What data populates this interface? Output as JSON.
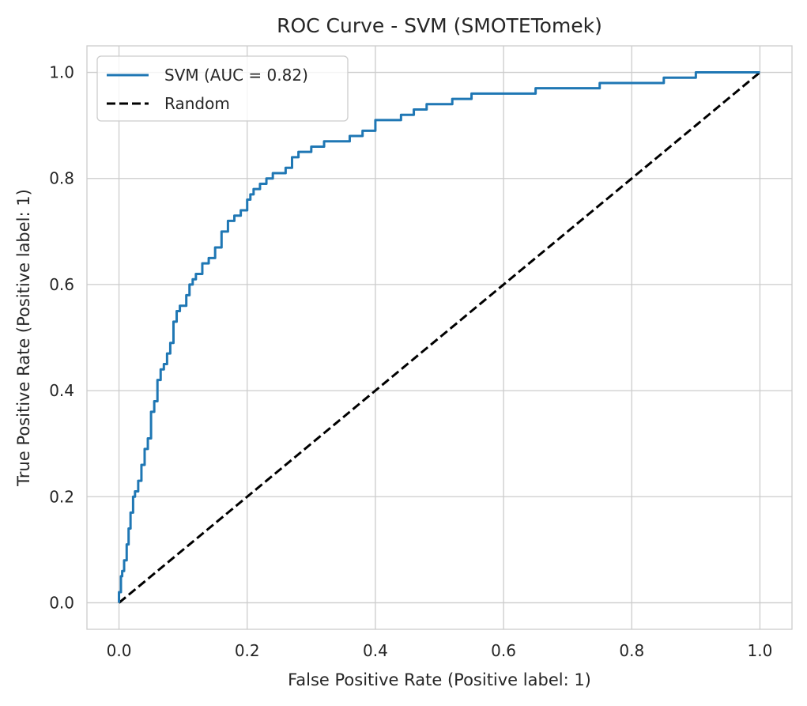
{
  "chart_data": {
    "type": "line",
    "title": "ROC Curve - SVM (SMOTETomek)",
    "xlabel": "False Positive Rate (Positive label: 1)",
    "ylabel": "True Positive Rate (Positive label: 1)",
    "xlim": [
      -0.05,
      1.05
    ],
    "ylim": [
      -0.05,
      1.05
    ],
    "xticks": [
      "0.0",
      "0.2",
      "0.4",
      "0.6",
      "0.8",
      "1.0"
    ],
    "yticks": [
      "0.0",
      "0.2",
      "0.4",
      "0.6",
      "0.8",
      "1.0"
    ],
    "grid": true,
    "legend_position": "top-left",
    "series": [
      {
        "name": "SVM (AUC = 0.82)",
        "color": "#1f77b4",
        "style": "solid",
        "x": [
          0.0,
          0.0,
          0.003,
          0.005,
          0.008,
          0.012,
          0.015,
          0.018,
          0.022,
          0.025,
          0.03,
          0.035,
          0.04,
          0.045,
          0.05,
          0.055,
          0.06,
          0.065,
          0.07,
          0.075,
          0.08,
          0.085,
          0.09,
          0.095,
          0.1,
          0.105,
          0.11,
          0.115,
          0.12,
          0.13,
          0.14,
          0.15,
          0.16,
          0.17,
          0.18,
          0.19,
          0.2,
          0.205,
          0.21,
          0.22,
          0.23,
          0.24,
          0.25,
          0.26,
          0.27,
          0.28,
          0.3,
          0.32,
          0.34,
          0.36,
          0.38,
          0.4,
          0.42,
          0.44,
          0.45,
          0.46,
          0.48,
          0.5,
          0.52,
          0.55,
          0.58,
          0.6,
          0.62,
          0.65,
          0.68,
          0.7,
          0.75,
          0.76,
          0.8,
          0.85,
          0.88,
          0.9,
          0.93,
          0.95,
          1.0
        ],
        "y": [
          0.0,
          0.02,
          0.05,
          0.06,
          0.08,
          0.11,
          0.14,
          0.17,
          0.2,
          0.21,
          0.23,
          0.26,
          0.29,
          0.31,
          0.36,
          0.38,
          0.42,
          0.44,
          0.45,
          0.47,
          0.49,
          0.53,
          0.55,
          0.56,
          0.56,
          0.58,
          0.6,
          0.61,
          0.62,
          0.64,
          0.65,
          0.67,
          0.7,
          0.72,
          0.73,
          0.74,
          0.76,
          0.77,
          0.78,
          0.79,
          0.8,
          0.81,
          0.81,
          0.82,
          0.84,
          0.85,
          0.86,
          0.87,
          0.87,
          0.88,
          0.89,
          0.91,
          0.91,
          0.92,
          0.92,
          0.93,
          0.94,
          0.94,
          0.95,
          0.96,
          0.96,
          0.96,
          0.96,
          0.97,
          0.97,
          0.97,
          0.98,
          0.98,
          0.98,
          0.99,
          0.99,
          1.0,
          1.0,
          1.0,
          1.0
        ]
      },
      {
        "name": "Random",
        "color": "#000000",
        "style": "dashed",
        "x": [
          0.0,
          1.0
        ],
        "y": [
          0.0,
          1.0
        ]
      }
    ]
  }
}
